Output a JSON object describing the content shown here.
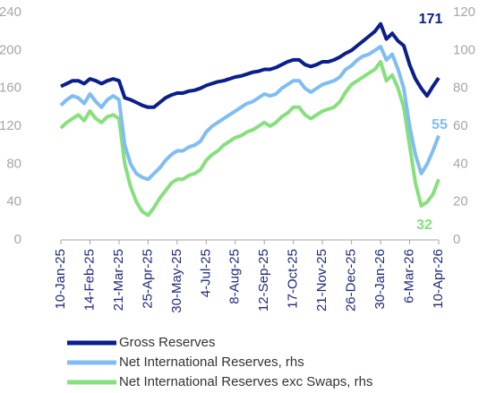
{
  "chart_data": {
    "type": "line",
    "categories": [
      "10-Jan-25",
      null,
      null,
      null,
      null,
      "14-Feb-25",
      null,
      null,
      null,
      null,
      "21-Mar-25",
      null,
      null,
      null,
      null,
      "25-Apr-25",
      null,
      null,
      null,
      null,
      "30-May-25",
      null,
      null,
      null,
      null,
      "4-Jul-25",
      null,
      null,
      null,
      null,
      "8-Aug-25",
      null,
      null,
      null,
      null,
      "12-Sep-25",
      null,
      null,
      null,
      null,
      "17-Oct-25",
      null,
      null,
      null,
      null,
      "21-Nov-25",
      null,
      null,
      null,
      null,
      "26-Dec-25",
      null,
      null,
      null,
      null,
      "30-Jan-26",
      null,
      null,
      null,
      null,
      "6-Mar-26",
      null,
      null,
      null,
      null,
      "10-Apr-26"
    ],
    "series": [
      {
        "name": "Gross Reserves",
        "color": "#0b1f8c",
        "values": [
          162,
          165,
          168,
          168,
          165,
          170,
          168,
          165,
          168,
          170,
          168,
          150,
          148,
          145,
          142,
          140,
          140,
          145,
          150,
          153,
          155,
          155,
          157,
          158,
          160,
          163,
          165,
          167,
          168,
          170,
          172,
          173,
          175,
          177,
          178,
          180,
          180,
          182,
          185,
          188,
          190,
          190,
          185,
          183,
          185,
          188,
          188,
          190,
          193,
          197,
          200,
          205,
          210,
          215,
          220,
          228,
          212,
          218,
          210,
          205,
          185,
          170,
          160,
          152,
          162,
          171
        ]
      },
      {
        "name": "Net International Reserves, rhs",
        "color": "#80bdf2",
        "axis": "y2",
        "values": [
          71,
          74,
          76,
          75,
          72,
          77,
          73,
          70,
          74,
          76,
          74,
          50,
          40,
          35,
          33,
          32,
          35,
          38,
          42,
          45,
          47,
          47,
          49,
          50,
          52,
          57,
          60,
          62,
          64,
          66,
          68,
          70,
          72,
          73,
          75,
          77,
          76,
          77,
          80,
          82,
          84,
          84,
          80,
          78,
          80,
          82,
          83,
          84,
          86,
          90,
          92,
          95,
          97,
          98,
          100,
          102,
          95,
          98,
          90,
          80,
          60,
          45,
          35,
          40,
          47,
          55
        ]
      },
      {
        "name": "Net International Reserves exc Swaps, rhs",
        "color": "#86e07c",
        "axis": "y2",
        "values": [
          59,
          62,
          64,
          66,
          63,
          68,
          64,
          62,
          65,
          66,
          64,
          40,
          28,
          20,
          15,
          13,
          17,
          22,
          26,
          30,
          32,
          32,
          34,
          35,
          37,
          42,
          45,
          47,
          50,
          52,
          54,
          55,
          57,
          58,
          60,
          62,
          60,
          62,
          65,
          67,
          70,
          70,
          66,
          64,
          66,
          68,
          69,
          70,
          73,
          78,
          82,
          84,
          86,
          88,
          90,
          94,
          84,
          87,
          80,
          70,
          50,
          30,
          18,
          20,
          24,
          32
        ]
      }
    ],
    "ylim": [
      0,
      240
    ],
    "yticks": [
      0,
      40,
      80,
      120,
      160,
      200,
      240
    ],
    "y2lim": [
      0,
      120
    ],
    "y2ticks": [
      0,
      20,
      40,
      60,
      80,
      100,
      120
    ],
    "legend": "bottom"
  }
}
